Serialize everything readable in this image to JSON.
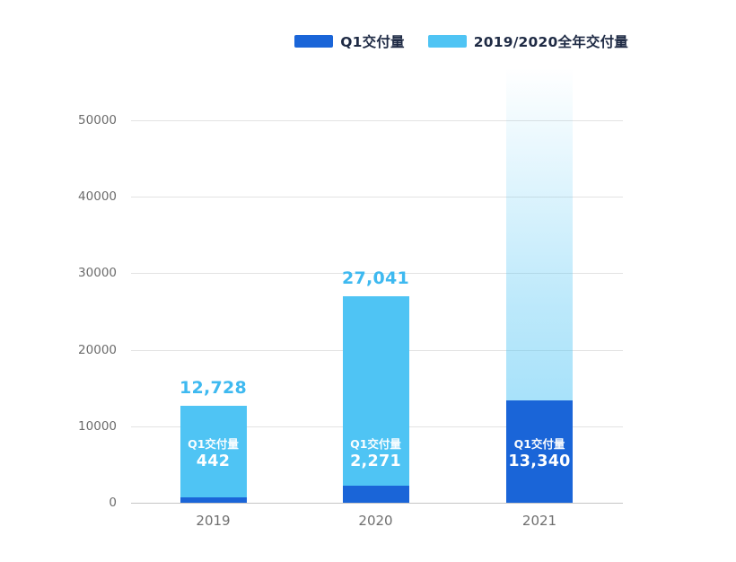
{
  "legend": [
    {
      "label": "Q1交付量",
      "color": "#1a65d8"
    },
    {
      "label": "2019/2020全年交付量",
      "color": "#4fc4f4"
    }
  ],
  "chart_data": {
    "type": "bar",
    "title": "",
    "categories": [
      "2019",
      "2020",
      "2021"
    ],
    "series": [
      {
        "name": "Q1交付量",
        "color": "#1a65d8",
        "values": [
          442,
          2271,
          13340
        ]
      },
      {
        "name": "2019/2020全年交付量",
        "color": "#4fc4f4",
        "values": [
          12728,
          27041,
          null
        ]
      }
    ],
    "bar_style": "q1-segment overlaid on bottom of full-year bar",
    "unknown_full_year": {
      "category": "2021",
      "style": "gradient-fade-to-white-top"
    },
    "total_labels": [
      "12,728",
      "27,041",
      ""
    ],
    "inner_label_title": "Q1交付量",
    "inner_label_values": [
      "442",
      "2,271",
      "13,340"
    ],
    "xlabel": "",
    "ylabel": "",
    "yticks": [
      0,
      10000,
      20000,
      30000,
      40000,
      50000
    ],
    "ylim": [
      0,
      55000
    ],
    "grid": true,
    "legend_position": "top-right"
  },
  "colors": {
    "q1_bar": "#1a65d8",
    "full_year_bar": "#4fc4f4",
    "total_label_text": "#3eb9f0",
    "inner_label_text": "#ffffff",
    "gridline": "#e3e3e3",
    "axis_line": "#c6c6c6",
    "ytick_text": "#6b6b6b",
    "xtick_text": "#6f6f6f",
    "legend_text": "#1e2a44",
    "background": "#ffffff"
  }
}
